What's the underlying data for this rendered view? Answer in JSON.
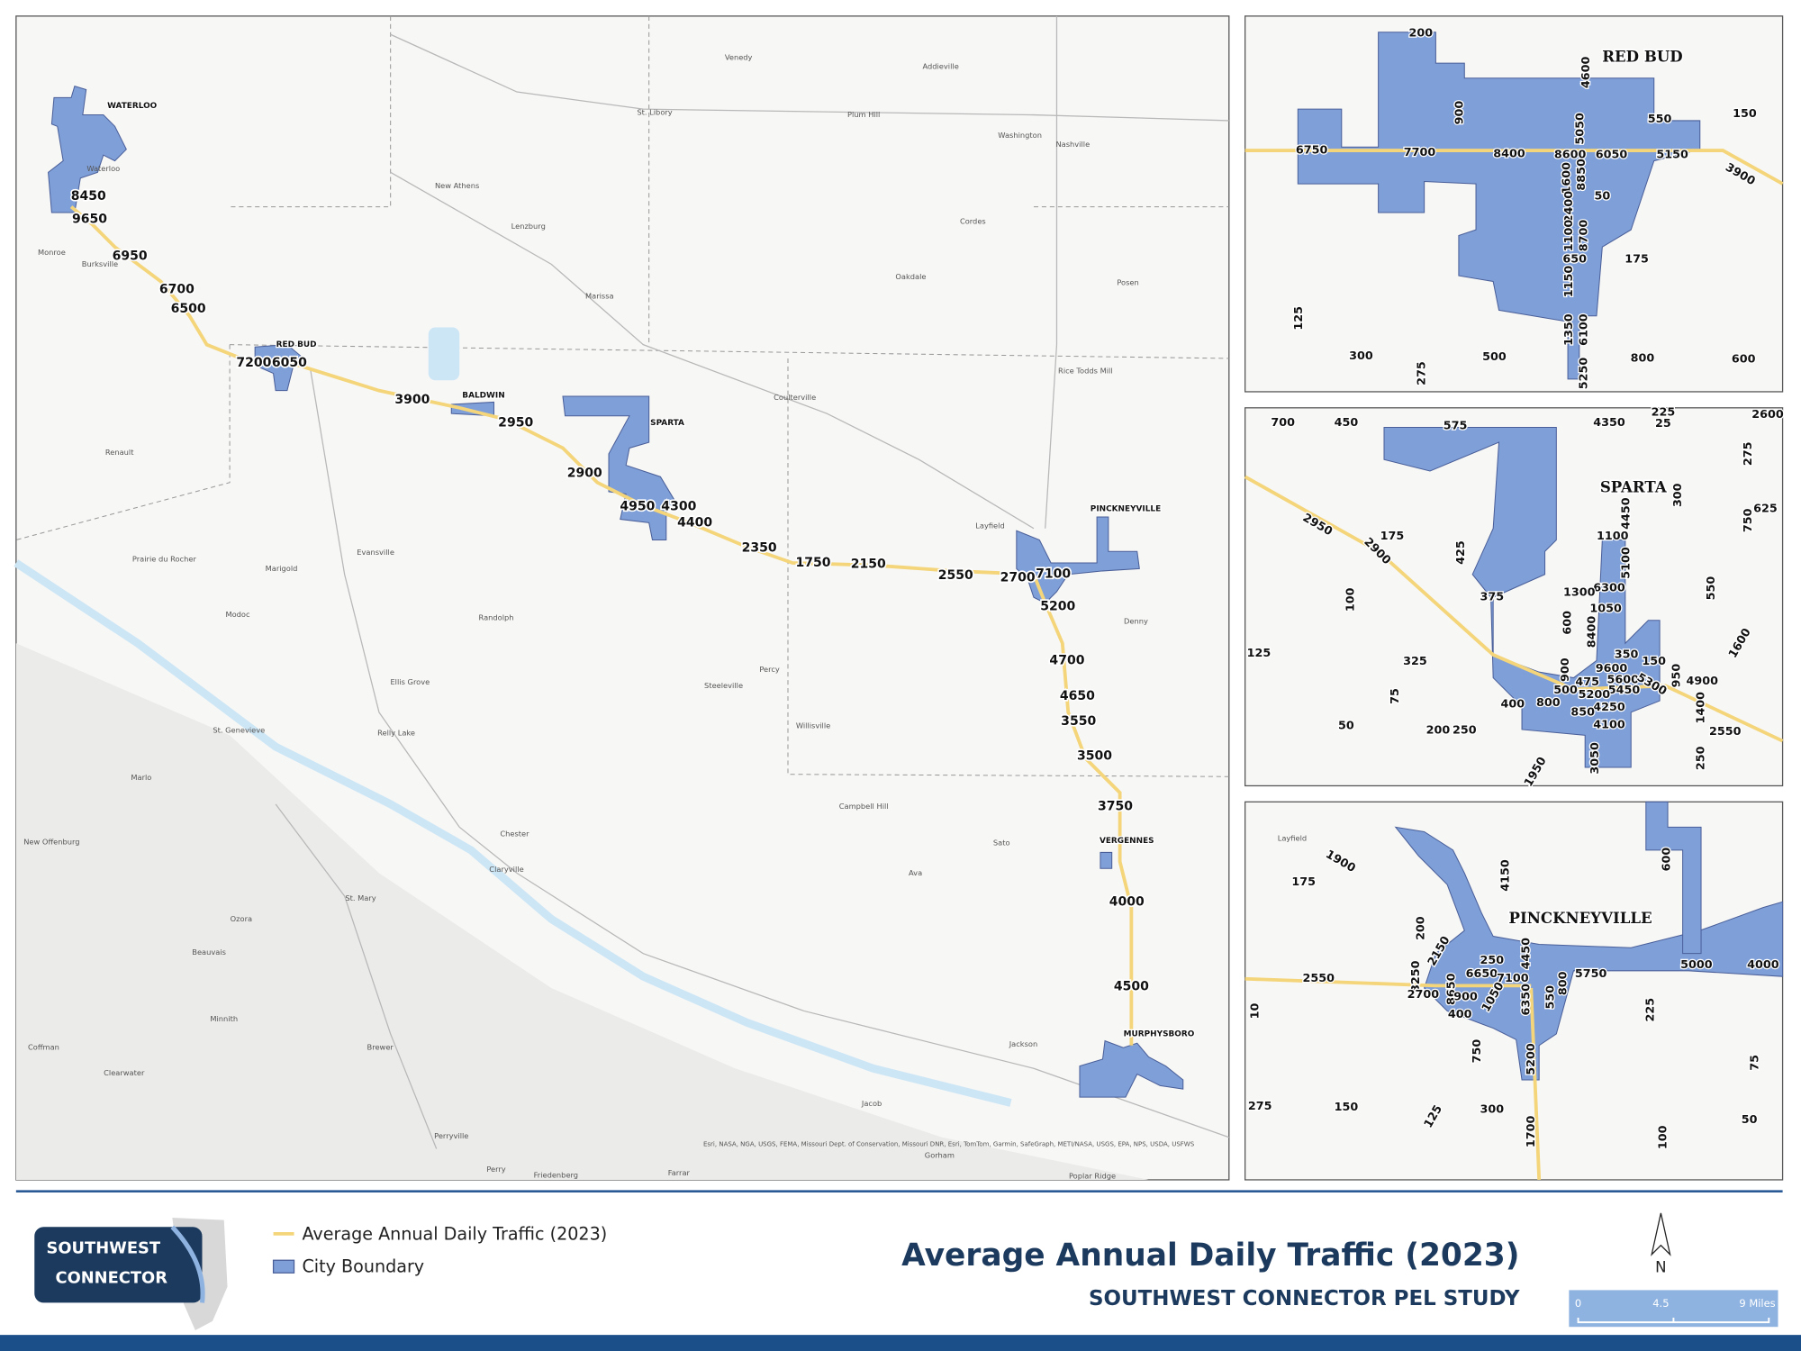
{
  "title": "Average Annual Daily Traffic (2023)",
  "subtitle": "SOUTHWEST CONNECTOR PEL STUDY",
  "logo": {
    "line1": "SOUTHWEST",
    "line2": "CONNECTOR"
  },
  "legend": {
    "items": [
      "Average Annual Daily Traffic (2023)",
      "City Boundary"
    ]
  },
  "north_arrow": "N",
  "scale_bar": {
    "labels": [
      0,
      4.5,
      "9 Miles"
    ]
  },
  "main_map": {
    "cities": [
      "WATERLOO",
      "RED BUD",
      "BALDWIN",
      "SPARTA",
      "PINCKNEYVILLE",
      "VERGENNES",
      "MURPHYSBORO"
    ],
    "traffic_counts": [
      8450,
      9650,
      6950,
      6700,
      6500,
      7200,
      6050,
      3900,
      2950,
      2900,
      4950,
      4300,
      4400,
      2350,
      1750,
      2150,
      2550,
      2700,
      7100,
      5200,
      4700,
      4650,
      3550,
      3500,
      3750,
      4000,
      4500
    ],
    "places": [
      "Waterloo",
      "Monroe",
      "Burksville",
      "Renault",
      "Prairie du Rocher",
      "Modoc",
      "Marigold",
      "Evansville",
      "Randolph",
      "Ellis Grove",
      "Relly Lake",
      "St. Genevieve",
      "Marlo",
      "New Offenburg",
      "Ozora",
      "Beauvais",
      "Minnith",
      "Brewer",
      "Coffman",
      "Clearwater",
      "Perryville",
      "Perry",
      "Friedenberg",
      "Farrar",
      "Chester",
      "Claryville",
      "St. Mary",
      "Steeleville",
      "Percy",
      "Willisville",
      "Campbell Hill",
      "Ava",
      "Sato",
      "Jacob",
      "Gorham",
      "Jackson",
      "Poplar Ridge",
      "Denny",
      "Layfield",
      "Coulterville",
      "Marissa",
      "Lenzburg",
      "New Athens",
      "St. Libory",
      "Venedy",
      "Addieville",
      "Washington",
      "Nashville",
      "Cordes",
      "Oakdale",
      "Posen",
      "Rice Todds Mill",
      "Plum Hill"
    ],
    "attribution": "Esri, NASA, NGA, USGS, FEMA, Missouri Dept. of Conservation, Missouri DNR, Esri, TomTom, Garmin, SafeGraph, METI/NASA, USGS, EPA, NPS, USDA, USFWS"
  },
  "insets": [
    {
      "title": "RED BUD",
      "traffic_counts": [
        200,
        900,
        4600,
        6750,
        7700,
        8400,
        8600,
        6050,
        5150,
        550,
        150,
        3900,
        5050,
        1600,
        8850,
        50,
        2400,
        1100,
        8700,
        650,
        175,
        1150,
        1350,
        6100,
        125,
        300,
        275,
        500,
        5250,
        800,
        600
      ]
    },
    {
      "title": "SPARTA",
      "traffic_counts": [
        700,
        450,
        575,
        4350,
        225,
        25,
        2600,
        275,
        300,
        625,
        750,
        2950,
        175,
        2900,
        4450,
        1100,
        425,
        5100,
        6300,
        375,
        1300,
        1050,
        100,
        550,
        600,
        1600,
        8400,
        125,
        325,
        350,
        150,
        9600,
        900,
        950,
        4900,
        475,
        5600,
        5300,
        500,
        5450,
        75,
        5200,
        400,
        800,
        4250,
        1400,
        850,
        4100,
        50,
        200,
        250,
        2550,
        1950,
        3050,
        250
      ]
    },
    {
      "title": "PINCKNEYVILLE",
      "traffic_counts": [
        1900,
        175,
        4150,
        600,
        200,
        2150,
        250,
        4450,
        2550,
        5750,
        5000,
        4000,
        800,
        3250,
        6650,
        7100,
        2700,
        8650,
        900,
        1050,
        6350,
        550,
        400,
        225,
        10,
        750,
        5200,
        75,
        275,
        150,
        300,
        125,
        1700,
        100,
        50
      ],
      "places": [
        "Layfield"
      ]
    }
  ]
}
